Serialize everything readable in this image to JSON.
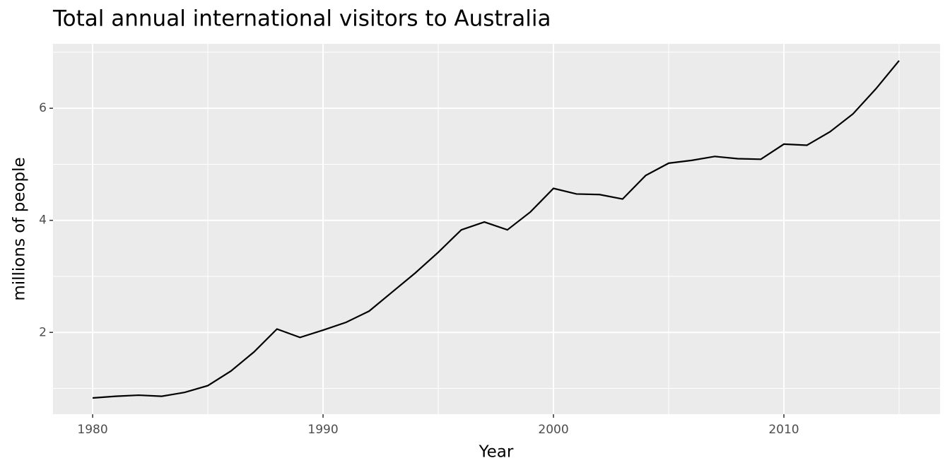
{
  "chart_data": {
    "type": "line",
    "title": "Total annual international visitors to Australia",
    "x_label": "Year",
    "y_label": "millions of people",
    "x": [
      1980,
      1981,
      1982,
      1983,
      1984,
      1985,
      1986,
      1987,
      1988,
      1989,
      1990,
      1991,
      1992,
      1993,
      1994,
      1995,
      1996,
      1997,
      1998,
      1999,
      2000,
      2001,
      2002,
      2003,
      2004,
      2005,
      2006,
      2007,
      2008,
      2009,
      2010,
      2011,
      2012,
      2013,
      2014,
      2015
    ],
    "series": [
      {
        "color": "#000000",
        "values": [
          0.83,
          0.86,
          0.88,
          0.86,
          0.93,
          1.05,
          1.31,
          1.65,
          2.06,
          1.91,
          2.04,
          2.18,
          2.38,
          2.72,
          3.06,
          3.43,
          3.83,
          3.97,
          3.83,
          4.15,
          4.57,
          4.47,
          4.46,
          4.38,
          4.8,
          5.02,
          5.07,
          5.14,
          5.1,
          5.09,
          5.36,
          5.34,
          5.58,
          5.9,
          6.35,
          6.85
        ]
      }
    ],
    "xlim": [
      1978.28,
      2016.78
    ],
    "xticks": [
      1980,
      1990,
      2000,
      2010
    ],
    "xminor": [
      1985,
      1995,
      2005,
      2015
    ],
    "ylim": [
      0.54,
      7.15
    ],
    "yticks": [
      2,
      4,
      6
    ],
    "yminor": [
      1,
      3,
      5,
      7
    ],
    "grid": true,
    "background": "#ebebeb"
  }
}
